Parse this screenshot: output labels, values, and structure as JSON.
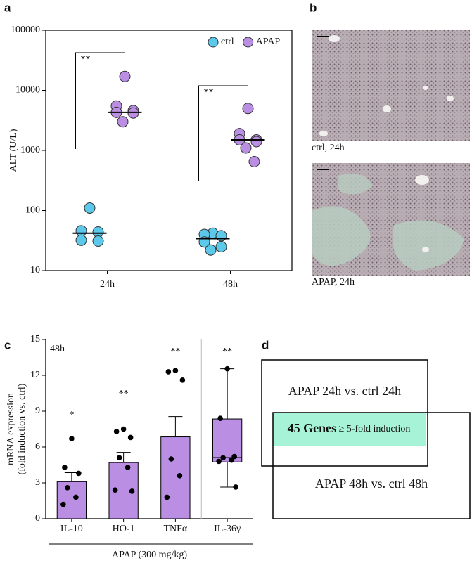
{
  "chart_data": [
    {
      "type": "scatter",
      "panel": "a",
      "ylabel": "ALT (U/L)",
      "log": true,
      "categories": [
        "24h",
        "48h"
      ],
      "ylim": [
        10,
        100000
      ],
      "yticks": [
        10,
        100,
        1000,
        10000,
        100000
      ],
      "legend": "top-right",
      "series": [
        {
          "name": "ctrl",
          "color": "#5cc8ea",
          "values": [
            [
              110,
              46,
              44,
              32,
              31
            ],
            [
              42,
              40,
              38,
              30,
              25,
              22
            ]
          ],
          "medians": [
            42,
            34
          ]
        },
        {
          "name": "APAP",
          "color": "#b98ee3",
          "values": [
            [
              17000,
              5500,
              4600,
              4300,
              4200,
              3000
            ],
            [
              5000,
              1900,
              1500,
              1500,
              1400,
              1100,
              650
            ]
          ],
          "medians": [
            4300,
            1500
          ]
        }
      ],
      "annotations": [
        "**",
        "**"
      ]
    },
    {
      "type": "bar",
      "panel": "c",
      "ylabel": [
        "mRNA expression",
        "(fold induction vs. ctrl)"
      ],
      "xlabel": "APAP (300 mg/kg)",
      "inset_label": "48h",
      "color": "#b98ee3",
      "categories": [
        "IL-10",
        "HO-1",
        "TNFα",
        "IL-36γ"
      ],
      "values": [
        3.1,
        4.7,
        6.85,
        null
      ],
      "errors": [
        0.75,
        0.85,
        1.7,
        null
      ],
      "points": [
        [
          6.7,
          4.3,
          3.8,
          2.6,
          1.8,
          1.2
        ],
        [
          7.5,
          7.3,
          6.8,
          5.1,
          4.3,
          2.4,
          2.3
        ],
        [
          12.4,
          12.3,
          11.6,
          5.0,
          3.6,
          1.8
        ],
        [
          12.55,
          8.4,
          5.2,
          5.1,
          4.9,
          4.8,
          2.65
        ]
      ],
      "box": {
        "category": "IL-36γ",
        "min": 2.65,
        "q1": 4.75,
        "median": 5.1,
        "q3": 8.35,
        "max": 12.55
      },
      "ylim": [
        0,
        15
      ],
      "yticks": [
        0,
        3,
        6,
        9,
        12,
        15
      ],
      "annotations": [
        "*",
        "**",
        "**",
        "**"
      ]
    }
  ],
  "panel_b": {
    "label": "b",
    "captions": [
      "ctrl, 24h",
      "APAP, 24h"
    ]
  },
  "panel_d": {
    "label": "d",
    "top": "APAP 24h vs. ctrl 24h",
    "overlap_bold": "45 Genes",
    "overlap_text": "≥ 5-fold induction",
    "bottom": "APAP 48h vs. ctrl 48h"
  }
}
